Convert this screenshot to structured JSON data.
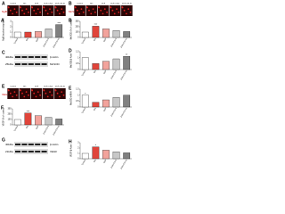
{
  "chart_data": [
    {
      "type": "bar",
      "label": "A",
      "ylabel": "NgB (nuclear/cytoplasm)",
      "categories": [
        "Control",
        "Bm",
        "DCF",
        "DCF+CN-5",
        "DCF+CN-10"
      ],
      "values": [
        1,
        1,
        1.1,
        1.6,
        2.4
      ],
      "colors": [
        "#ffffff",
        "#e0443a",
        "#f2a39c",
        "#c8c8c8",
        "#808080"
      ],
      "ylim": [
        0,
        3
      ],
      "yticks": [
        0,
        1,
        2,
        3
      ],
      "annotation": "***"
    },
    {
      "type": "bar",
      "label": "B",
      "ylabel": "MnSOD (% of control)",
      "categories": [
        "Control",
        "Bm",
        "DCF",
        "DCF+CN-5",
        "DCF+CN-10"
      ],
      "values": [
        100,
        210,
        160,
        130,
        110
      ],
      "colors": [
        "#ffffff",
        "#e0443a",
        "#f2a39c",
        "#c8c8c8",
        "#808080"
      ],
      "ylim": [
        0,
        300
      ],
      "yticks": [
        0,
        100,
        200,
        300
      ],
      "annotation": "***"
    },
    {
      "type": "bar",
      "label": "D",
      "ylabel": "MnSOD/β-Actin",
      "categories": [
        "Control",
        "Bm",
        "DCF",
        "DCF+CN-5",
        "DCF+CN-10"
      ],
      "values": [
        1,
        0.5,
        0.7,
        0.9,
        1.1
      ],
      "colors": [
        "#ffffff",
        "#e0443a",
        "#f2a39c",
        "#c8c8c8",
        "#808080"
      ],
      "ylim": [
        0,
        1.5
      ],
      "yticks": [
        0,
        0.5,
        1,
        1.5
      ],
      "annotation": "**"
    },
    {
      "type": "bar",
      "label": "E",
      "ylabel": "MnSOD mRNA",
      "categories": [
        "Control",
        "Bm",
        "DCF",
        "DCF+CN-5",
        "DCF+CN-10"
      ],
      "values": [
        1,
        0.4,
        0.6,
        0.8,
        1
      ],
      "colors": [
        "#ffffff",
        "#e0443a",
        "#f2a39c",
        "#c8c8c8",
        "#808080"
      ],
      "ylim": [
        0,
        1.5
      ],
      "yticks": [
        0,
        0.5,
        1,
        1.5
      ],
      "annotation": "*"
    },
    {
      "type": "bar",
      "label": "F",
      "ylabel": "VEGF (% of control)",
      "categories": [
        "Control",
        "Bm",
        "DCF",
        "DCF+CN-5",
        "DCF+CN-10"
      ],
      "values": [
        100,
        220,
        170,
        140,
        110
      ],
      "colors": [
        "#ffffff",
        "#e0443a",
        "#f2a39c",
        "#c8c8c8",
        "#808080"
      ],
      "ylim": [
        0,
        300
      ],
      "yticks": [
        0,
        100,
        200,
        300
      ],
      "annotation": "***"
    },
    {
      "type": "bar",
      "label": "H",
      "ylabel": "VEGF/β-Actin",
      "categories": [
        "Control",
        "Bm",
        "DCF",
        "DCF+CN-5",
        "DCF+CN-10"
      ],
      "values": [
        1,
        2.2,
        1.6,
        1.3,
        1.1
      ],
      "colors": [
        "#ffffff",
        "#e0443a",
        "#f2a39c",
        "#c8c8c8",
        "#808080"
      ],
      "ylim": [
        0,
        3
      ],
      "yticks": [
        0,
        1,
        2,
        3
      ],
      "annotation": "*"
    }
  ],
  "images": [
    {
      "label": "A",
      "title": "NgB",
      "panels": [
        "Control",
        "Bm",
        "DCF",
        "DCF+CN-5",
        "DCF+CN-10"
      ]
    },
    {
      "label": "B",
      "title": "MnSOD",
      "panels": [
        "Control",
        "Bm",
        "DCF",
        "DCF+CN-5",
        "DCF+CN-10"
      ]
    },
    {
      "label": "E",
      "title": "VEGF",
      "panels": [
        "Control",
        "Bm",
        "DCF",
        "DCF+CN-5",
        "DCF+CN-10"
      ]
    }
  ],
  "blots": [
    {
      "label": "C",
      "bands": [
        "β-Actin",
        "MnSOD"
      ],
      "sizes": [
        "40kDa",
        "25kDa"
      ]
    },
    {
      "label": "G",
      "bands": [
        "β-Actin",
        "VEGF"
      ],
      "sizes": [
        "40kDa",
        "21kDa"
      ]
    }
  ]
}
